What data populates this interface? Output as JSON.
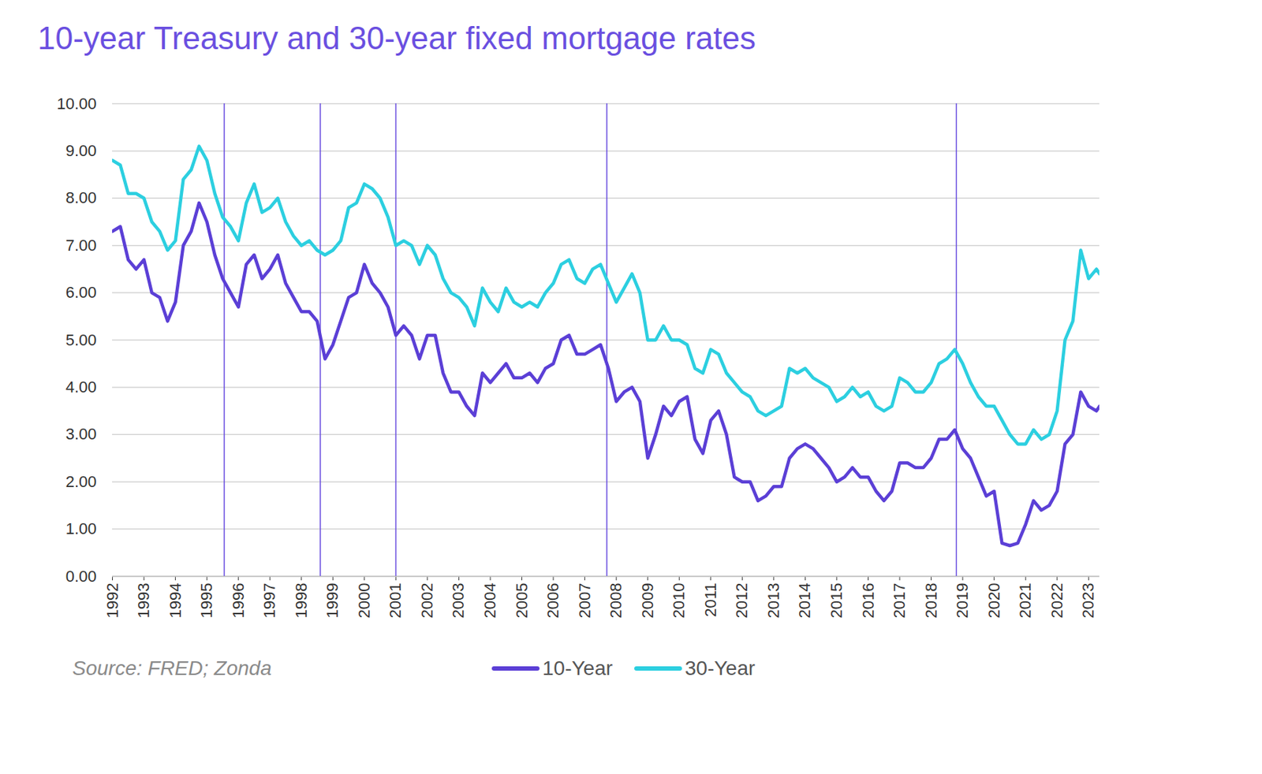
{
  "chart_data": {
    "type": "line",
    "title": "10-year Treasury and 30-year fixed mortgage rates",
    "source": "Source: FRED; Zonda",
    "x": [
      1992,
      1992.25,
      1992.5,
      1992.75,
      1993,
      1993.25,
      1993.5,
      1993.75,
      1994,
      1994.25,
      1994.5,
      1994.75,
      1995,
      1995.25,
      1995.5,
      1995.75,
      1996,
      1996.25,
      1996.5,
      1996.75,
      1997,
      1997.25,
      1997.5,
      1997.75,
      1998,
      1998.25,
      1998.5,
      1998.75,
      1999,
      1999.25,
      1999.5,
      1999.75,
      2000,
      2000.25,
      2000.5,
      2000.75,
      2001,
      2001.25,
      2001.5,
      2001.75,
      2002,
      2002.25,
      2002.5,
      2002.75,
      2003,
      2003.25,
      2003.5,
      2003.75,
      2004,
      2004.25,
      2004.5,
      2004.75,
      2005,
      2005.25,
      2005.5,
      2005.75,
      2006,
      2006.25,
      2006.5,
      2006.75,
      2007,
      2007.25,
      2007.5,
      2007.75,
      2008,
      2008.25,
      2008.5,
      2008.75,
      2009,
      2009.25,
      2009.5,
      2009.75,
      2010,
      2010.25,
      2010.5,
      2010.75,
      2011,
      2011.25,
      2011.5,
      2011.75,
      2012,
      2012.25,
      2012.5,
      2012.75,
      2013,
      2013.25,
      2013.5,
      2013.75,
      2014,
      2014.25,
      2014.5,
      2014.75,
      2015,
      2015.25,
      2015.5,
      2015.75,
      2016,
      2016.25,
      2016.5,
      2016.75,
      2017,
      2017.25,
      2017.5,
      2017.75,
      2018,
      2018.25,
      2018.5,
      2018.75,
      2019,
      2019.25,
      2019.5,
      2019.75,
      2020,
      2020.25,
      2020.5,
      2020.75,
      2021,
      2021.25,
      2021.5,
      2021.75,
      2022,
      2022.25,
      2022.5,
      2022.75,
      2023,
      2023.25,
      2023.35
    ],
    "series": [
      {
        "name": "10-Year",
        "color": "#5b3fd6",
        "values": [
          7.3,
          7.4,
          6.7,
          6.5,
          6.7,
          6.0,
          5.9,
          5.4,
          5.8,
          7.0,
          7.3,
          7.9,
          7.5,
          6.8,
          6.3,
          6.0,
          5.7,
          6.6,
          6.8,
          6.3,
          6.5,
          6.8,
          6.2,
          5.9,
          5.6,
          5.6,
          5.4,
          4.6,
          4.9,
          5.4,
          5.9,
          6.0,
          6.6,
          6.2,
          6.0,
          5.7,
          5.1,
          5.3,
          5.1,
          4.6,
          5.1,
          5.1,
          4.3,
          3.9,
          3.9,
          3.6,
          3.4,
          4.3,
          4.1,
          4.3,
          4.5,
          4.2,
          4.2,
          4.3,
          4.1,
          4.4,
          4.5,
          5.0,
          5.1,
          4.7,
          4.7,
          4.8,
          4.9,
          4.4,
          3.7,
          3.9,
          4.0,
          3.7,
          2.5,
          3.0,
          3.6,
          3.4,
          3.7,
          3.8,
          2.9,
          2.6,
          3.3,
          3.5,
          3.0,
          2.1,
          2.0,
          2.0,
          1.6,
          1.7,
          1.9,
          1.9,
          2.5,
          2.7,
          2.8,
          2.7,
          2.5,
          2.3,
          2.0,
          2.1,
          2.3,
          2.1,
          2.1,
          1.8,
          1.6,
          1.8,
          2.4,
          2.4,
          2.3,
          2.3,
          2.5,
          2.9,
          2.9,
          3.1,
          2.7,
          2.5,
          2.1,
          1.7,
          1.8,
          0.7,
          0.65,
          0.7,
          1.1,
          1.6,
          1.4,
          1.5,
          1.8,
          2.8,
          3.0,
          3.9,
          3.6,
          3.5,
          3.6
        ]
      },
      {
        "name": "30-Year",
        "color": "#2ccfe0",
        "values": [
          8.8,
          8.7,
          8.1,
          8.1,
          8.0,
          7.5,
          7.3,
          6.9,
          7.1,
          8.4,
          8.6,
          9.1,
          8.8,
          8.1,
          7.6,
          7.4,
          7.1,
          7.9,
          8.3,
          7.7,
          7.8,
          8.0,
          7.5,
          7.2,
          7.0,
          7.1,
          6.9,
          6.8,
          6.9,
          7.1,
          7.8,
          7.9,
          8.3,
          8.2,
          8.0,
          7.6,
          7.0,
          7.1,
          7.0,
          6.6,
          7.0,
          6.8,
          6.3,
          6.0,
          5.9,
          5.7,
          5.3,
          6.1,
          5.8,
          5.6,
          6.1,
          5.8,
          5.7,
          5.8,
          5.7,
          6.0,
          6.2,
          6.6,
          6.7,
          6.3,
          6.2,
          6.5,
          6.6,
          6.2,
          5.8,
          6.1,
          6.4,
          6.0,
          5.0,
          5.0,
          5.3,
          5.0,
          5.0,
          4.9,
          4.4,
          4.3,
          4.8,
          4.7,
          4.3,
          4.1,
          3.9,
          3.8,
          3.5,
          3.4,
          3.5,
          3.6,
          4.4,
          4.3,
          4.4,
          4.2,
          4.1,
          4.0,
          3.7,
          3.8,
          4.0,
          3.8,
          3.9,
          3.6,
          3.5,
          3.6,
          4.2,
          4.1,
          3.9,
          3.9,
          4.1,
          4.5,
          4.6,
          4.8,
          4.5,
          4.1,
          3.8,
          3.6,
          3.6,
          3.3,
          3.0,
          2.8,
          2.8,
          3.1,
          2.9,
          3.0,
          3.5,
          5.0,
          5.4,
          6.9,
          6.3,
          6.5,
          6.4
        ]
      }
    ],
    "vertical_lines": [
      1995.55,
      1998.6,
      2001.0,
      2007.7,
      2018.8
    ],
    "xlim": [
      1992,
      2023.35
    ],
    "xticks": [
      1992,
      1993,
      1994,
      1995,
      1996,
      1997,
      1998,
      1999,
      2000,
      2001,
      2002,
      2003,
      2004,
      2005,
      2006,
      2007,
      2008,
      2009,
      2010,
      2011,
      2012,
      2013,
      2014,
      2015,
      2016,
      2017,
      2018,
      2019,
      2020,
      2021,
      2022,
      2023
    ],
    "ylim": [
      0,
      10
    ],
    "yticks": [
      {
        "value": 0,
        "label": "0.00"
      },
      {
        "value": 1,
        "label": "1.00"
      },
      {
        "value": 2,
        "label": "2.00"
      },
      {
        "value": 3,
        "label": "3.00"
      },
      {
        "value": 4,
        "label": "4.00"
      },
      {
        "value": 5,
        "label": "5.00"
      },
      {
        "value": 6,
        "label": "6.00"
      },
      {
        "value": 7,
        "label": "7.00"
      },
      {
        "value": 8,
        "label": "8.00"
      },
      {
        "value": 9,
        "label": "9.00"
      },
      {
        "value": 10,
        "label": "10.00"
      }
    ],
    "grid": true,
    "legend": "bottom"
  }
}
